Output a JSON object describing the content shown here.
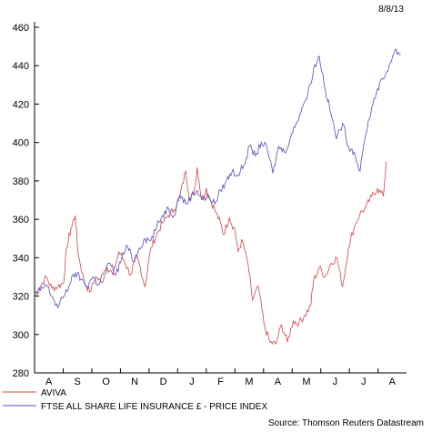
{
  "date_label": "8/8/13",
  "source_label": "Source: Thomson Reuters Datastream",
  "chart_data": {
    "type": "line",
    "x_type": "month-index",
    "x_tick_labels": [
      "A",
      "S",
      "O",
      "N",
      "D",
      "J",
      "F",
      "M",
      "A",
      "M",
      "J",
      "J",
      "A"
    ],
    "yticks": [
      280,
      300,
      320,
      340,
      360,
      380,
      400,
      420,
      440,
      460
    ],
    "ylim": [
      280,
      460
    ],
    "grid": false,
    "legend_position": "bottom-left",
    "series": [
      {
        "name": "AVIVA",
        "color": "#d04848",
        "points": [
          [
            0.0,
            319
          ],
          [
            0.2,
            325
          ],
          [
            0.4,
            330
          ],
          [
            0.6,
            324
          ],
          [
            0.8,
            325
          ],
          [
            1.0,
            327
          ],
          [
            1.1,
            345
          ],
          [
            1.25,
            355
          ],
          [
            1.4,
            362
          ],
          [
            1.5,
            342
          ],
          [
            1.7,
            328
          ],
          [
            1.9,
            322
          ],
          [
            2.1,
            330
          ],
          [
            2.3,
            327
          ],
          [
            2.5,
            335
          ],
          [
            2.7,
            331
          ],
          [
            2.9,
            343
          ],
          [
            3.1,
            338
          ],
          [
            3.3,
            331
          ],
          [
            3.5,
            340
          ],
          [
            3.6,
            337
          ],
          [
            3.8,
            325
          ],
          [
            4.0,
            345
          ],
          [
            4.2,
            352
          ],
          [
            4.4,
            358
          ],
          [
            4.6,
            362
          ],
          [
            4.8,
            365
          ],
          [
            5.0,
            372
          ],
          [
            5.2,
            385
          ],
          [
            5.35,
            370
          ],
          [
            5.5,
            375
          ],
          [
            5.6,
            387
          ],
          [
            5.75,
            370
          ],
          [
            5.9,
            376
          ],
          [
            6.0,
            372
          ],
          [
            6.2,
            365
          ],
          [
            6.4,
            358
          ],
          [
            6.5,
            352
          ],
          [
            6.7,
            361
          ],
          [
            6.9,
            354
          ],
          [
            7.0,
            343
          ],
          [
            7.15,
            349
          ],
          [
            7.35,
            336
          ],
          [
            7.5,
            318
          ],
          [
            7.7,
            325
          ],
          [
            7.9,
            305
          ],
          [
            8.1,
            296
          ],
          [
            8.3,
            295
          ],
          [
            8.5,
            305
          ],
          [
            8.7,
            296
          ],
          [
            8.9,
            307
          ],
          [
            9.1,
            306
          ],
          [
            9.3,
            310
          ],
          [
            9.5,
            315
          ],
          [
            9.6,
            328
          ],
          [
            9.8,
            335
          ],
          [
            10.0,
            330
          ],
          [
            10.2,
            337
          ],
          [
            10.4,
            340
          ],
          [
            10.6,
            325
          ],
          [
            10.8,
            345
          ],
          [
            11.0,
            356
          ],
          [
            11.2,
            363
          ],
          [
            11.4,
            366
          ],
          [
            11.6,
            372
          ],
          [
            11.8,
            376
          ],
          [
            12.0,
            372
          ],
          [
            12.1,
            390
          ]
        ]
      },
      {
        "name": "FTSE ALL SHARE LIFE INSURANCE £ - PRICE INDEX",
        "color": "#5050c0",
        "points": [
          [
            0.0,
            321
          ],
          [
            0.2,
            323
          ],
          [
            0.4,
            326
          ],
          [
            0.6,
            320
          ],
          [
            0.8,
            314
          ],
          [
            1.0,
            320
          ],
          [
            1.2,
            326
          ],
          [
            1.4,
            332
          ],
          [
            1.6,
            329
          ],
          [
            1.8,
            325
          ],
          [
            2.0,
            330
          ],
          [
            2.2,
            326
          ],
          [
            2.4,
            333
          ],
          [
            2.6,
            337
          ],
          [
            2.8,
            331
          ],
          [
            3.0,
            340
          ],
          [
            3.2,
            346
          ],
          [
            3.4,
            338
          ],
          [
            3.6,
            345
          ],
          [
            3.8,
            350
          ],
          [
            4.0,
            349
          ],
          [
            4.2,
            356
          ],
          [
            4.4,
            362
          ],
          [
            4.6,
            366
          ],
          [
            4.8,
            362
          ],
          [
            5.0,
            373
          ],
          [
            5.2,
            368
          ],
          [
            5.4,
            372
          ],
          [
            5.6,
            375
          ],
          [
            5.8,
            370
          ],
          [
            6.0,
            372
          ],
          [
            6.2,
            368
          ],
          [
            6.4,
            375
          ],
          [
            6.6,
            380
          ],
          [
            6.8,
            385
          ],
          [
            7.0,
            383
          ],
          [
            7.2,
            388
          ],
          [
            7.4,
            398
          ],
          [
            7.6,
            393
          ],
          [
            7.8,
            400
          ],
          [
            8.0,
            397
          ],
          [
            8.2,
            384
          ],
          [
            8.4,
            398
          ],
          [
            8.6,
            395
          ],
          [
            8.8,
            402
          ],
          [
            9.0,
            410
          ],
          [
            9.2,
            418
          ],
          [
            9.4,
            425
          ],
          [
            9.6,
            438
          ],
          [
            9.8,
            445
          ],
          [
            10.0,
            428
          ],
          [
            10.2,
            415
          ],
          [
            10.4,
            402
          ],
          [
            10.6,
            410
          ],
          [
            10.8,
            398
          ],
          [
            11.0,
            395
          ],
          [
            11.2,
            385
          ],
          [
            11.4,
            405
          ],
          [
            11.6,
            418
          ],
          [
            11.8,
            428
          ],
          [
            12.0,
            433
          ],
          [
            12.2,
            440
          ],
          [
            12.4,
            448
          ],
          [
            12.6,
            446
          ]
        ]
      }
    ]
  }
}
